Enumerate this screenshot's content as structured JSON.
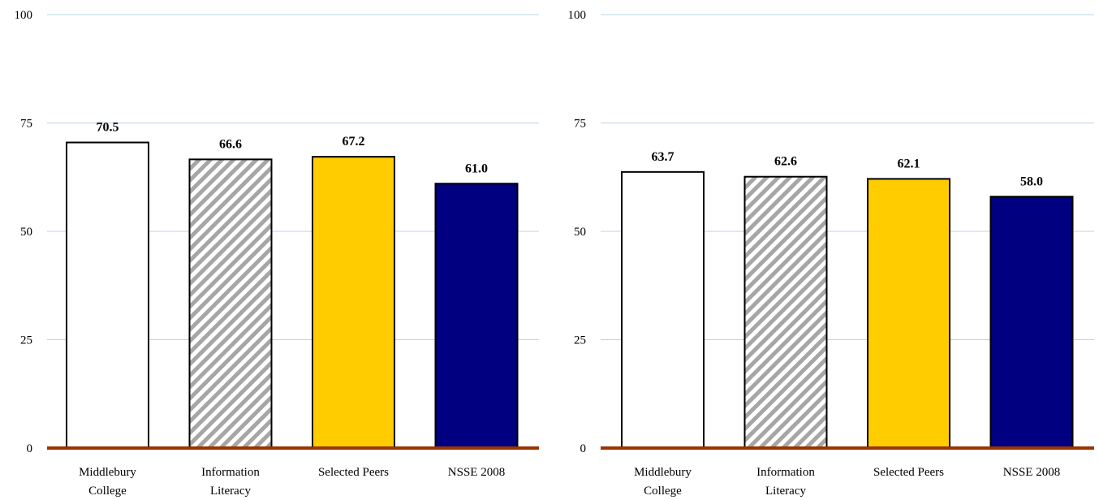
{
  "chart_data": [
    {
      "type": "bar",
      "title": "",
      "xlabel": "",
      "ylabel": "",
      "ylim": [
        0,
        100
      ],
      "yticks": [
        0,
        25,
        50,
        75,
        100
      ],
      "categories": [
        [
          "Middlebury",
          "College"
        ],
        [
          "Information",
          "Literacy"
        ],
        [
          "Selected Peers"
        ],
        [
          "NSSE 2008"
        ]
      ],
      "values": [
        70.5,
        66.6,
        67.2,
        61.0
      ],
      "value_labels": [
        "70.5",
        "66.6",
        "67.2",
        "61.0"
      ],
      "bar_colors": [
        "#ffffff",
        "hatch-gray",
        "#ffcc00",
        "#000080"
      ],
      "grid": true
    },
    {
      "type": "bar",
      "title": "",
      "xlabel": "",
      "ylabel": "",
      "ylim": [
        0,
        100
      ],
      "yticks": [
        0,
        25,
        50,
        75,
        100
      ],
      "categories": [
        [
          "Middlebury",
          "College"
        ],
        [
          "Information",
          "Literacy"
        ],
        [
          "Selected Peers"
        ],
        [
          "NSSE 2008"
        ]
      ],
      "values": [
        63.7,
        62.6,
        62.1,
        58.0
      ],
      "value_labels": [
        "63.7",
        "62.6",
        "62.1",
        "58.0"
      ],
      "bar_colors": [
        "#ffffff",
        "hatch-gray",
        "#ffcc00",
        "#000080"
      ],
      "grid": true
    }
  ],
  "colors": {
    "gridline": "#b8d4e8",
    "baseline": "#993300",
    "bar_outline": "#000000"
  }
}
